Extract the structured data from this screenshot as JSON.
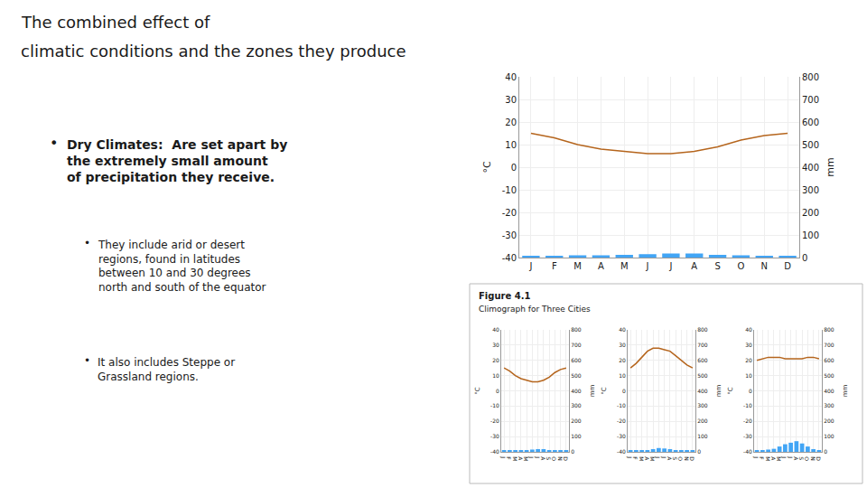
{
  "chart_data": [
    {
      "type": "bar",
      "title": "The combined effect of",
      "subtitle": "climatic conditions and the zones they produce",
      "annotations": [
        "•",
        "Dry Climates:  Are set apart by\nthe extremely small amount\nof precipitation they receive.",
        "•",
        "They include arid or desert\nregions, found in latitudes\nbetween 10 and 30 degrees\nnorth and south of the equator",
        "•",
        "It also includes Steppe or\nGrassland regions."
      ],
      "categories": [
        "J",
        "F",
        "M",
        "A",
        "M",
        "J",
        "J",
        "A",
        "S",
        "O",
        "N",
        "D"
      ],
      "series": [
        {
          "type": "bar",
          "color": "#42a5f5",
          "axis": "y2",
          "values": [
            8,
            8,
            10,
            10,
            12,
            15,
            18,
            18,
            12,
            10,
            8,
            8
          ]
        },
        {
          "type": "line",
          "color": "#b5651d",
          "values": [
            15,
            13,
            10,
            8,
            7,
            6,
            6,
            7,
            9,
            12,
            14,
            15
          ]
        }
      ],
      "ylabel": "°C",
      "y2label": "mm",
      "ylim": [
        -40,
        40
      ],
      "yticks": [
        -40,
        -30,
        -20,
        -10,
        0,
        10,
        20,
        30,
        40
      ],
      "y2lim": [
        0,
        800
      ],
      "y2ticks": [
        0,
        100,
        200,
        300,
        400,
        500,
        600,
        700,
        800
      ],
      "grid": true
    },
    {
      "type": "bar",
      "annotations": [
        "Figure 4.1",
        "Climograph for Three Cities"
      ],
      "categories": [
        "J",
        "F",
        "M",
        "A",
        "M",
        "J",
        "J",
        "A",
        "S",
        "O",
        "N",
        "D"
      ],
      "series": [
        {
          "type": "bar",
          "color": "#42a5f5",
          "axis": "y2",
          "values": [
            8,
            8,
            10,
            10,
            12,
            15,
            18,
            18,
            12,
            10,
            8,
            8
          ]
        },
        {
          "type": "line",
          "color": "#b5651d",
          "values": [
            15,
            13,
            10,
            8,
            7,
            6,
            6,
            7,
            9,
            12,
            14,
            15
          ]
        }
      ],
      "ylabel": "°C",
      "y2label": "mm",
      "ylim": [
        -40,
        40
      ],
      "yticks": [
        -40,
        -30,
        -20,
        -10,
        0,
        10,
        20,
        30,
        40
      ],
      "y2lim": [
        0,
        800
      ],
      "y2ticks": [
        0,
        100,
        200,
        300,
        400,
        500,
        600,
        700,
        800
      ],
      "grid": true
    },
    {
      "type": "bar",
      "categories": [
        "J",
        "F",
        "M",
        "A",
        "M",
        "J",
        "J",
        "A",
        "S",
        "O",
        "N",
        "D"
      ],
      "series": [
        {
          "type": "bar",
          "color": "#42a5f5",
          "axis": "y2",
          "values": [
            8,
            9,
            10,
            12,
            18,
            25,
            22,
            18,
            12,
            9,
            8,
            8
          ]
        },
        {
          "type": "line",
          "color": "#b5651d",
          "values": [
            15,
            18,
            22,
            26,
            28,
            28,
            27,
            26,
            23,
            20,
            17,
            15
          ]
        }
      ],
      "ylabel": "°C",
      "y2label": "mm",
      "ylim": [
        -40,
        40
      ],
      "yticks": [
        -40,
        -30,
        -20,
        -10,
        0,
        10,
        20,
        30,
        40
      ],
      "y2lim": [
        0,
        800
      ],
      "y2ticks": [
        0,
        100,
        200,
        300,
        400,
        500,
        600,
        700,
        800
      ],
      "grid": true
    },
    {
      "type": "bar",
      "categories": [
        "J",
        "F",
        "M",
        "A",
        "M",
        "J",
        "J",
        "A",
        "S",
        "O",
        "N",
        "D"
      ],
      "series": [
        {
          "type": "bar",
          "color": "#42a5f5",
          "axis": "y2",
          "values": [
            10,
            12,
            15,
            20,
            35,
            50,
            60,
            70,
            55,
            35,
            18,
            10
          ]
        },
        {
          "type": "line",
          "color": "#b5651d",
          "values": [
            20,
            21,
            22,
            22,
            22,
            21,
            21,
            21,
            21,
            22,
            22,
            21
          ]
        }
      ],
      "ylabel": "°C",
      "y2label": "mm",
      "ylim": [
        -40,
        40
      ],
      "yticks": [
        -40,
        -30,
        -20,
        -10,
        0,
        10,
        20,
        30,
        40
      ],
      "y2lim": [
        0,
        800
      ],
      "y2ticks": [
        0,
        100,
        200,
        300,
        400,
        500,
        600,
        700,
        800
      ],
      "grid": true
    }
  ]
}
